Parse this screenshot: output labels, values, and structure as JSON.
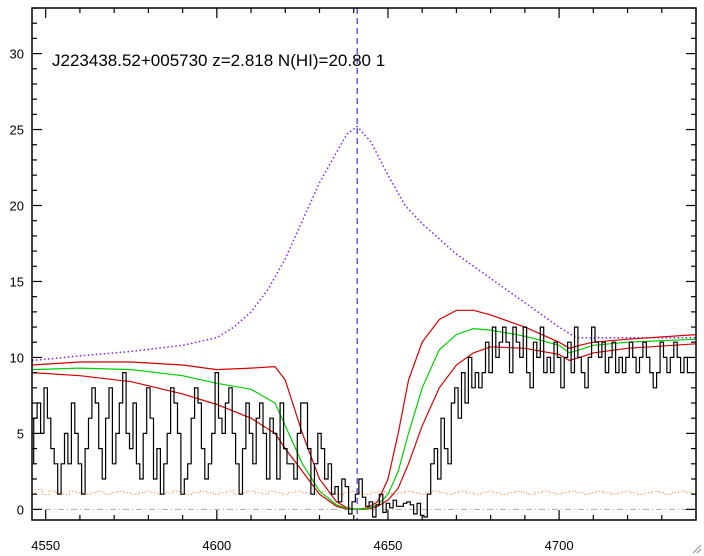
{
  "chart_data": {
    "type": "line",
    "title": "J223438.52+005730 z=2.818 N(HI)=20.80 1",
    "xlabel": "",
    "ylabel": "",
    "xlim": [
      4546,
      4740
    ],
    "ylim": [
      -0.7,
      33
    ],
    "xticks": [
      4550,
      4600,
      4650,
      4700
    ],
    "yticks": [
      0,
      5,
      10,
      15,
      20,
      25,
      30
    ],
    "xtick_labels": [
      "4550",
      "4600",
      "4650",
      "4700"
    ],
    "ytick_labels": [
      "0",
      "5",
      "10",
      "15",
      "20",
      "25",
      "30"
    ],
    "grid": false,
    "colors": {
      "spectrum": "#000000",
      "continuum": "#7f1fff",
      "fit": "#00d000",
      "fit_bounds": "#d40000",
      "error": "#e08030",
      "center_line": "#1010d0",
      "zero_line": "#aaaaaa"
    },
    "center_wavelength": 4641,
    "spectrum": {
      "x_start": 4546,
      "x_step": 1,
      "y": [
        3,
        6,
        7,
        5,
        8,
        6,
        4,
        3,
        1,
        3,
        5,
        3,
        7,
        5,
        3,
        1,
        4,
        6,
        8,
        7,
        4,
        2,
        6,
        8,
        3,
        5,
        7,
        9,
        5,
        4,
        7,
        3,
        2,
        5,
        8,
        6,
        2,
        4,
        1,
        3,
        5,
        8,
        7,
        5,
        1,
        2,
        3,
        6,
        8,
        7,
        4,
        2,
        3,
        5,
        9,
        6,
        5,
        7,
        8,
        5,
        3,
        1,
        4,
        7,
        5,
        3,
        6,
        7,
        5,
        2,
        6,
        5,
        2,
        7,
        4,
        3,
        3,
        2,
        5,
        7,
        7,
        4,
        1,
        3,
        5,
        4,
        2,
        3,
        1,
        1.5,
        0.5,
        2,
        1.5,
        -0.3,
        0.5,
        1,
        2,
        0.8,
        0.2,
        0.5,
        -0.5,
        0.3,
        1,
        -0.2,
        0.4,
        0.1,
        0.6,
        0.2,
        0.2,
        0.4,
        0.5,
        0.3,
        -0.3,
        0.4,
        -0.4,
        -0.5,
        1,
        3,
        4,
        2,
        6,
        4,
        3,
        7,
        8,
        6,
        9,
        7,
        10,
        8,
        9,
        8,
        9,
        11,
        9,
        12,
        10,
        11,
        12,
        11,
        9,
        12,
        11,
        10,
        12,
        9,
        8,
        11,
        10,
        12,
        9,
        10,
        9,
        11,
        10,
        8,
        10,
        11,
        9,
        12,
        10,
        9,
        8,
        10,
        12,
        11,
        10,
        11,
        9,
        10,
        11,
        9,
        10,
        9,
        10,
        11,
        10,
        9,
        10,
        11,
        10,
        9,
        8,
        9,
        11,
        10,
        9,
        10,
        11,
        10,
        9,
        10,
        9
      ]
    },
    "continuum": {
      "x": [
        4546,
        4560,
        4575,
        4590,
        4600,
        4605,
        4610,
        4615,
        4620,
        4625,
        4630,
        4635,
        4638,
        4641,
        4645,
        4650,
        4655,
        4660,
        4665,
        4670,
        4680,
        4690,
        4700,
        4705,
        4720,
        4740
      ],
      "y": [
        9.8,
        10.1,
        10.4,
        10.8,
        11.3,
        12,
        13,
        14.5,
        16.5,
        19,
        21.5,
        23.5,
        24.7,
        25.2,
        24.2,
        22,
        20,
        18.8,
        17.8,
        16.8,
        15.2,
        13.6,
        12,
        11.3,
        11.3,
        11.3
      ]
    },
    "fit": {
      "x": [
        4546,
        4560,
        4575,
        4590,
        4600,
        4610,
        4617,
        4620,
        4625,
        4630,
        4635,
        4638,
        4641,
        4644,
        4647,
        4650,
        4653,
        4656,
        4660,
        4665,
        4670,
        4675,
        4680,
        4690,
        4700,
        4703,
        4706,
        4710,
        4720,
        4740
      ],
      "y": [
        9.2,
        9.3,
        9.2,
        8.8,
        8.3,
        7.9,
        7,
        5.5,
        3,
        1.2,
        0.3,
        0.05,
        0,
        0.05,
        0.3,
        1,
        2.5,
        5,
        8,
        10.5,
        11.5,
        11.9,
        11.8,
        11.4,
        10.8,
        10.3,
        10.5,
        10.8,
        11,
        11.2
      ]
    },
    "fit_upper": {
      "x": [
        4546,
        4560,
        4575,
        4590,
        4600,
        4610,
        4617,
        4620,
        4625,
        4630,
        4635,
        4638,
        4641,
        4644,
        4647,
        4650,
        4653,
        4656,
        4660,
        4665,
        4670,
        4675,
        4680,
        4690,
        4700,
        4703,
        4706,
        4710,
        4720,
        4740
      ],
      "y": [
        9.5,
        9.7,
        9.7,
        9.5,
        9.2,
        9.3,
        9.4,
        8.5,
        5,
        2,
        0.5,
        0.1,
        0,
        0.1,
        0.5,
        2,
        5,
        8.5,
        11,
        12.5,
        13.1,
        13.1,
        12.8,
        12,
        11,
        10.6,
        10.8,
        11,
        11.2,
        11.5
      ]
    },
    "fit_lower": {
      "x": [
        4546,
        4560,
        4575,
        4590,
        4600,
        4610,
        4617,
        4620,
        4625,
        4630,
        4635,
        4638,
        4641,
        4644,
        4647,
        4650,
        4653,
        4656,
        4660,
        4665,
        4670,
        4675,
        4680,
        4690,
        4700,
        4703,
        4706,
        4710,
        4720,
        4740
      ],
      "y": [
        9,
        8.8,
        8.4,
        7.6,
        6.9,
        6,
        5,
        4,
        2.5,
        1,
        0.2,
        0.02,
        0,
        0.02,
        0.2,
        0.6,
        1.4,
        3,
        5.5,
        8,
        9.5,
        10.3,
        10.7,
        10.6,
        10.2,
        9.8,
        10,
        10.3,
        10.6,
        10.9
      ]
    },
    "error": {
      "x_start": 4546,
      "x_step": 2,
      "y": [
        1.1,
        1.3,
        1.0,
        1.2,
        1.1,
        1.0,
        1.2,
        1.1,
        1.0,
        1.1,
        1.2,
        1.0,
        1.1,
        1.2,
        1.1,
        1.0,
        1.1,
        1.2,
        1.1,
        1.0,
        1.1,
        1.2,
        1.1,
        1.0,
        1.1,
        1.2,
        1.1,
        1.0,
        1.1,
        1.2,
        1.0,
        1.1,
        1.2,
        1.1,
        1.0,
        1.2,
        1.1,
        1.0,
        1.1,
        1.2,
        1.1,
        1.0,
        1.1,
        1.2,
        1.1,
        1.0,
        1.1,
        1.2,
        1.1,
        1.0,
        1.1,
        1.2,
        1.1,
        1.0,
        1.1,
        1.2,
        1.1,
        1.0,
        1.1,
        1.2,
        1.1,
        1.0,
        1.1,
        1.2,
        1.1,
        1.0,
        1.1,
        1.2,
        1.1,
        1.0,
        1.1,
        1.2,
        1.1,
        1.0,
        1.1,
        1.2,
        1.1,
        1.0,
        1.1,
        1.2,
        1.1,
        1.0,
        1.1,
        1.2,
        1.1,
        1.0,
        1.1,
        1.2,
        1.1,
        1.0,
        1.1,
        1.2,
        1.1,
        1.0,
        1.1,
        1.2,
        1.1,
        1.0
      ]
    }
  }
}
